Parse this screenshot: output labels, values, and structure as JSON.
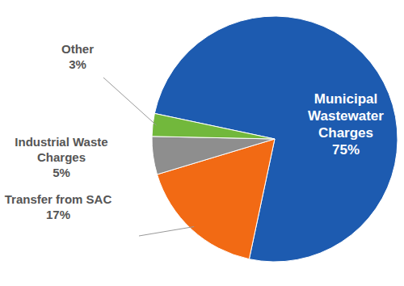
{
  "chart_data": {
    "type": "pie",
    "categories": [
      "Municipal Wastewater Charges",
      "Transfer from SAC",
      "Industrial Waste Charges",
      "Other"
    ],
    "values": [
      75,
      17,
      5,
      3
    ],
    "value_labels": [
      "75%",
      "17%",
      "5%",
      "3%"
    ],
    "colors": [
      "#1d5bb0",
      "#f26a14",
      "#8e8e8e",
      "#72b83c"
    ],
    "data_labels": true
  }
}
